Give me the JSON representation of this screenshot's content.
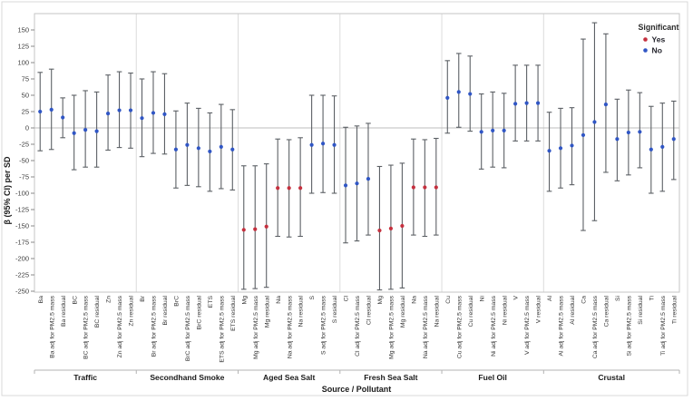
{
  "legend": {
    "title": "Significant",
    "items": [
      {
        "label": "Yes",
        "color": "#C5303E"
      },
      {
        "label": "No",
        "color": "#3056C5"
      }
    ]
  },
  "colors": {
    "significant_yes": "#C5303E",
    "significant_no": "#3056C5",
    "error_bar": "#5c6065",
    "zero_line": "#bdbdbd",
    "frame": "#c6c6c6",
    "separator": "#dcdcdc",
    "group_axis": "#b3b3b3",
    "outer_border": "#d9d9d9"
  },
  "chart_data": {
    "type": "scatter",
    "subtype": "forest-interval-plot",
    "title": "",
    "ylabel": "β (95% CI) per SD",
    "xlabel": "Source / Pollutant",
    "ylim": [
      -250,
      175
    ],
    "ytick_min": -250,
    "ytick_max": 150,
    "ytick_step": 25,
    "grid": false,
    "zero_reference_line": true,
    "legend_position": "top-right-inside",
    "groups": [
      {
        "name": "Traffic",
        "items": [
          {
            "label": "Ba",
            "value": 25,
            "ci_low": -35,
            "ci_high": 85,
            "significant": false
          },
          {
            "label": "Ba adj for PM2.5 mass",
            "value": 28,
            "ci_low": -33,
            "ci_high": 90,
            "significant": false
          },
          {
            "label": "Ba residual",
            "value": 16,
            "ci_low": -15,
            "ci_high": 46,
            "significant": false
          },
          {
            "label": "BC",
            "value": -8,
            "ci_low": -64,
            "ci_high": 50,
            "significant": false
          },
          {
            "label": "BC adj for PM2.5 mass",
            "value": -3,
            "ci_low": -60,
            "ci_high": 57,
            "significant": false
          },
          {
            "label": "BC residual",
            "value": -5,
            "ci_low": -60,
            "ci_high": 55,
            "significant": false
          },
          {
            "label": "Zn",
            "value": 22,
            "ci_low": -34,
            "ci_high": 81,
            "significant": false
          },
          {
            "label": "Zn adj for PM2.5 mass",
            "value": 27,
            "ci_low": -30,
            "ci_high": 86,
            "significant": false
          },
          {
            "label": "Zn residual",
            "value": 27,
            "ci_low": -31,
            "ci_high": 84,
            "significant": false
          }
        ]
      },
      {
        "name": "Secondhand Smoke",
        "items": [
          {
            "label": "Br",
            "value": 15,
            "ci_low": -44,
            "ci_high": 75,
            "significant": false
          },
          {
            "label": "Br adj for PM2.5 mass",
            "value": 23,
            "ci_low": -39,
            "ci_high": 86,
            "significant": false
          },
          {
            "label": "Br residual",
            "value": 21,
            "ci_low": -40,
            "ci_high": 83,
            "significant": false
          },
          {
            "label": "BrC",
            "value": -33,
            "ci_low": -92,
            "ci_high": 26,
            "significant": false
          },
          {
            "label": "BrC adj for PM2.5 mass",
            "value": -26,
            "ci_low": -88,
            "ci_high": 38,
            "significant": false
          },
          {
            "label": "BrC residual",
            "value": -31,
            "ci_low": -90,
            "ci_high": 30,
            "significant": false
          },
          {
            "label": "ETS",
            "value": -36,
            "ci_low": -97,
            "ci_high": 23,
            "significant": false
          },
          {
            "label": "ETS adj for PM2.5 mass",
            "value": -29,
            "ci_low": -93,
            "ci_high": 36,
            "significant": false
          },
          {
            "label": "ETS residual",
            "value": -33,
            "ci_low": -95,
            "ci_high": 28,
            "significant": false
          }
        ]
      },
      {
        "name": "Aged Sea Salt",
        "items": [
          {
            "label": "Mg",
            "value": -156,
            "ci_low": -247,
            "ci_high": -58,
            "significant": true
          },
          {
            "label": "Mg adj for PM2.5 mass",
            "value": -155,
            "ci_low": -246,
            "ci_high": -58,
            "significant": true
          },
          {
            "label": "Mg residual",
            "value": -151,
            "ci_low": -244,
            "ci_high": -55,
            "significant": true
          },
          {
            "label": "Na",
            "value": -92,
            "ci_low": -166,
            "ci_high": -17,
            "significant": true
          },
          {
            "label": "Na adj for PM2.5 mass",
            "value": -92,
            "ci_low": -167,
            "ci_high": -18,
            "significant": true
          },
          {
            "label": "Na residual",
            "value": -92,
            "ci_low": -166,
            "ci_high": -15,
            "significant": true
          },
          {
            "label": "S",
            "value": -26,
            "ci_low": -100,
            "ci_high": 50,
            "significant": false
          },
          {
            "label": "S adj for PM2.5 mass",
            "value": -24,
            "ci_low": -99,
            "ci_high": 50,
            "significant": false
          },
          {
            "label": "S residual",
            "value": -26,
            "ci_low": -100,
            "ci_high": 49,
            "significant": false
          }
        ]
      },
      {
        "name": "Fresh Sea Salt",
        "items": [
          {
            "label": "Cl",
            "value": -88,
            "ci_low": -176,
            "ci_high": 1,
            "significant": false
          },
          {
            "label": "Cl adj for PM2.5 mass",
            "value": -85,
            "ci_low": -173,
            "ci_high": 3,
            "significant": false
          },
          {
            "label": "Cl residual",
            "value": -78,
            "ci_low": -164,
            "ci_high": 7,
            "significant": false
          },
          {
            "label": "Mg",
            "value": -157,
            "ci_low": -248,
            "ci_high": -59,
            "significant": true
          },
          {
            "label": "Mg adj for PM2.5 mass",
            "value": -154,
            "ci_low": -247,
            "ci_high": -57,
            "significant": true
          },
          {
            "label": "Mg residual",
            "value": -150,
            "ci_low": -245,
            "ci_high": -54,
            "significant": true
          },
          {
            "label": "Na",
            "value": -91,
            "ci_low": -164,
            "ci_high": -17,
            "significant": true
          },
          {
            "label": "Na adj for PM2.5 mass",
            "value": -91,
            "ci_low": -166,
            "ci_high": -18,
            "significant": true
          },
          {
            "label": "Na residual",
            "value": -91,
            "ci_low": -164,
            "ci_high": -16,
            "significant": true
          }
        ]
      },
      {
        "name": "Fuel Oil",
        "items": [
          {
            "label": "Cu",
            "value": 46,
            "ci_low": -8,
            "ci_high": 103,
            "significant": false
          },
          {
            "label": "Cu adj for PM2.5 mass",
            "value": 55,
            "ci_low": 1,
            "ci_high": 114,
            "significant": false
          },
          {
            "label": "Cu residual",
            "value": 52,
            "ci_low": -5,
            "ci_high": 110,
            "significant": false
          },
          {
            "label": "Ni",
            "value": -6,
            "ci_low": -63,
            "ci_high": 52,
            "significant": false
          },
          {
            "label": "Ni adj for PM2.5 mass",
            "value": -4,
            "ci_low": -60,
            "ci_high": 55,
            "significant": false
          },
          {
            "label": "Ni residual",
            "value": -4,
            "ci_low": -61,
            "ci_high": 53,
            "significant": false
          },
          {
            "label": "V",
            "value": 37,
            "ci_low": -20,
            "ci_high": 96,
            "significant": false
          },
          {
            "label": "V adj for PM2.5 mass",
            "value": 38,
            "ci_low": -20,
            "ci_high": 96,
            "significant": false
          },
          {
            "label": "V residual",
            "value": 38,
            "ci_low": -20,
            "ci_high": 96,
            "significant": false
          }
        ]
      },
      {
        "name": "Crustal",
        "items": [
          {
            "label": "Al",
            "value": -35,
            "ci_low": -97,
            "ci_high": 24,
            "significant": false
          },
          {
            "label": "Al adj for PM2.5 mass",
            "value": -31,
            "ci_low": -92,
            "ci_high": 30,
            "significant": false
          },
          {
            "label": "Al residual",
            "value": -27,
            "ci_low": -87,
            "ci_high": 31,
            "significant": false
          },
          {
            "label": "Ca",
            "value": -11,
            "ci_low": -157,
            "ci_high": 136,
            "significant": false
          },
          {
            "label": "Ca adj for PM2.5 mass",
            "value": 9,
            "ci_low": -142,
            "ci_high": 161,
            "significant": false
          },
          {
            "label": "Ca residual",
            "value": 36,
            "ci_low": -68,
            "ci_high": 144,
            "significant": false
          },
          {
            "label": "Si",
            "value": -17,
            "ci_low": -81,
            "ci_high": 44,
            "significant": false
          },
          {
            "label": "Si adj for PM2.5 mass",
            "value": -7,
            "ci_low": -72,
            "ci_high": 58,
            "significant": false
          },
          {
            "label": "Si residual",
            "value": -6,
            "ci_low": -61,
            "ci_high": 54,
            "significant": false
          },
          {
            "label": "Ti",
            "value": -33,
            "ci_low": -100,
            "ci_high": 33,
            "significant": false
          },
          {
            "label": "Ti adj for PM2.5 mass",
            "value": -29,
            "ci_low": -97,
            "ci_high": 38,
            "significant": false
          },
          {
            "label": "Ti residual",
            "value": -17,
            "ci_low": -79,
            "ci_high": 41,
            "significant": false
          }
        ]
      }
    ]
  }
}
